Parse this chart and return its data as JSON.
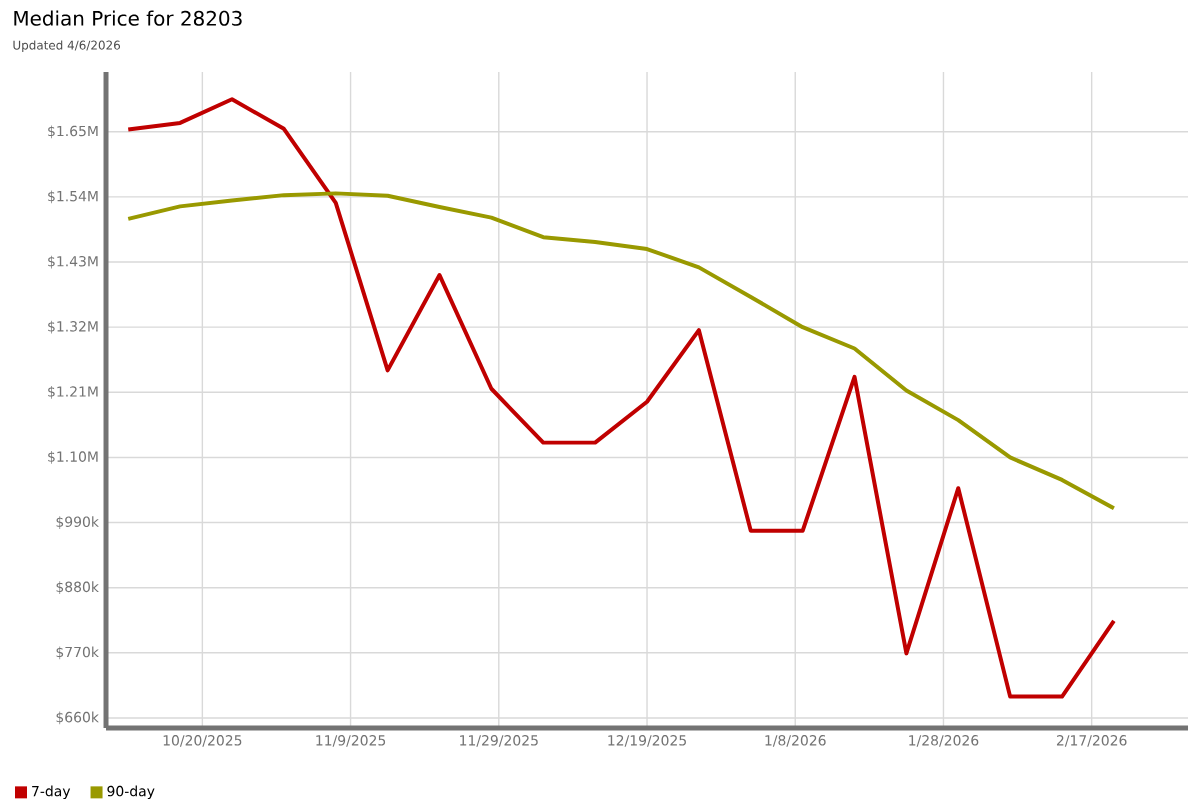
{
  "chart_data": {
    "type": "line",
    "title": "Median Price for 28203",
    "subtitle": "Updated 4/6/2026",
    "x": [
      "2025-10-10",
      "2025-10-17",
      "2025-10-24",
      "2025-10-31",
      "2025-11-07",
      "2025-11-14",
      "2025-11-21",
      "2025-11-28",
      "2025-12-05",
      "2025-12-12",
      "2025-12-19",
      "2025-12-26",
      "2026-01-02",
      "2026-01-09",
      "2026-01-16",
      "2026-01-23",
      "2026-01-30",
      "2026-02-06",
      "2026-02-13",
      "2026-02-20"
    ],
    "series": [
      {
        "name": "7-day",
        "color": "#c00000",
        "values": [
          1654000,
          1665000,
          1705000,
          1655000,
          1530000,
          1247000,
          1408000,
          1216000,
          1125000,
          1125000,
          1194000,
          1315000,
          976000,
          976000,
          1236000,
          769000,
          1048000,
          696000,
          696000,
          824000
        ]
      },
      {
        "name": "90-day",
        "color": "#999900",
        "values": [
          1503000,
          1524000,
          1534000,
          1543000,
          1546000,
          1542000,
          1523000,
          1505000,
          1472000,
          1464000,
          1452000,
          1421000,
          1371000,
          1320000,
          1284000,
          1213000,
          1163000,
          1100000,
          1062000,
          1014000
        ]
      }
    ],
    "xlim": [
      "2025-10-07",
      "2026-03-02"
    ],
    "xticks": [
      {
        "value": "2025-10-20",
        "label": "10/20/2025"
      },
      {
        "value": "2025-11-09",
        "label": "11/9/2025"
      },
      {
        "value": "2025-11-29",
        "label": "11/29/2025"
      },
      {
        "value": "2025-12-19",
        "label": "12/19/2025"
      },
      {
        "value": "2026-01-08",
        "label": "1/8/2026"
      },
      {
        "value": "2026-01-28",
        "label": "1/28/2026"
      },
      {
        "value": "2026-02-17",
        "label": "2/17/2026"
      }
    ],
    "ylim": [
      643000,
      1751000
    ],
    "yticks": [
      {
        "value": 660000,
        "label": "$660k"
      },
      {
        "value": 770000,
        "label": "$770k"
      },
      {
        "value": 880000,
        "label": "$880k"
      },
      {
        "value": 990000,
        "label": "$990k"
      },
      {
        "value": 1100000,
        "label": "$1.10M"
      },
      {
        "value": 1210000,
        "label": "$1.21M"
      },
      {
        "value": 1320000,
        "label": "$1.32M"
      },
      {
        "value": 1430000,
        "label": "$1.43M"
      },
      {
        "value": 1540000,
        "label": "$1.54M"
      },
      {
        "value": 1650000,
        "label": "$1.65M"
      }
    ],
    "grid": true,
    "legend": "bottom left",
    "marker": "none",
    "line_style": "solid"
  }
}
